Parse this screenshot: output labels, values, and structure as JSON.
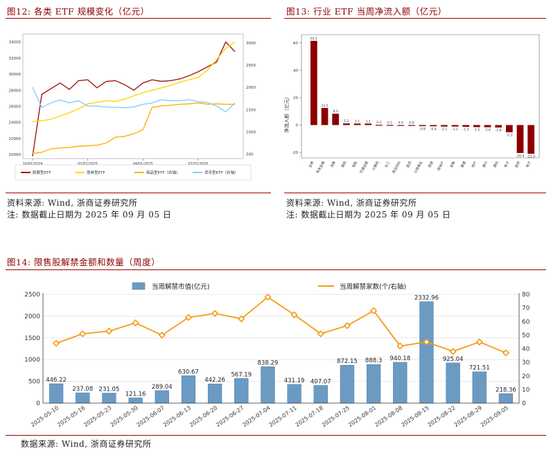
{
  "fig12": {
    "title": "图12:  各类 ETF 规模变化（亿元）",
    "source": "资料来源:  Wind,  浙商证券研究所",
    "note": "注:  数据截止日期为 2025 年 09 月 05 日"
  },
  "fig13": {
    "title": "图13:  行业 ETF 当周净流入额（亿元）",
    "source": "资料来源:  Wind,  浙商证券研究所",
    "note": "注:  数据截止日期为 2025 年 09 月 05 日"
  },
  "fig14": {
    "title": "图14:  限售股解禁金额和数量（周度）",
    "source": "数据来源:  Wind,  浙商证券研究所"
  },
  "chart_data": [
    {
      "id": "fig12",
      "type": "line",
      "x": [
        "2024-10-01",
        "2024-10-15",
        "2024-11-01",
        "2024-11-15",
        "2024-12-01",
        "2024-12-15",
        "2025-01-01",
        "2025-01-15",
        "2025-02-01",
        "2025-02-15",
        "2025-03-01",
        "2025-03-15",
        "2025-04-01",
        "2025-04-15",
        "2025-05-01",
        "2025-05-15",
        "2025-06-01",
        "2025-06-15",
        "2025-07-01",
        "2025-07-15",
        "2025-08-01",
        "2025-08-15",
        "2025-09-05"
      ],
      "xticks": [
        "10/01/2024",
        "01/01/2025",
        "04/01/2025",
        "07/01/2025"
      ],
      "yleft_ticks": [
        "20000",
        "22000",
        "24000",
        "26000",
        "28000",
        "30000",
        "32000",
        "34000"
      ],
      "yright_ticks": [
        "500",
        "1000",
        "1500",
        "2000",
        "2500",
        "3000"
      ],
      "ylim_left": [
        19500,
        35000
      ],
      "ylim_right": [
        400,
        3200
      ],
      "series": [
        {
          "name": "股票型ETF",
          "axis": "left",
          "color": "#a31515",
          "values": [
            19800,
            27500,
            28200,
            28900,
            28100,
            29200,
            29300,
            28300,
            29100,
            29200,
            28700,
            28000,
            28900,
            29300,
            29100,
            29200,
            29400,
            29800,
            30300,
            30900,
            31500,
            34000,
            32800
          ]
        },
        {
          "name": "债券型ETF",
          "axis": "left",
          "color": "#ffd600",
          "values": [
            24100,
            24200,
            24400,
            24800,
            25200,
            25700,
            26300,
            26500,
            26700,
            26600,
            26900,
            27300,
            27700,
            28000,
            28300,
            28600,
            29000,
            29300,
            29600,
            30500,
            31800,
            33200,
            34000
          ]
        },
        {
          "name": "商品型ETF（右轴）",
          "axis": "right",
          "color": "#ffb000",
          "values": [
            520,
            540,
            620,
            640,
            650,
            680,
            690,
            700,
            750,
            880,
            900,
            960,
            1050,
            1550,
            1580,
            1600,
            1620,
            1630,
            1650,
            1620,
            1630,
            1620,
            1620
          ]
        },
        {
          "name": "货币型ETF（右轴）",
          "axis": "right",
          "color": "#87cefa",
          "values": [
            2000,
            1550,
            1650,
            1720,
            1650,
            1700,
            1580,
            1580,
            1560,
            1550,
            1540,
            1560,
            1620,
            1650,
            1720,
            1700,
            1700,
            1720,
            1680,
            1660,
            1580,
            1450,
            1650
          ]
        }
      ]
    },
    {
      "id": "fig13",
      "type": "bar",
      "ylabel": "净流入额（亿元）",
      "ylim": [
        -24,
        66
      ],
      "yticks": [
        "-20",
        "0",
        "20",
        "40",
        "60"
      ],
      "categories": [
        "证券",
        "有色金属",
        "消费",
        "煤炭",
        "电影",
        "交通运输",
        "计算机",
        "化工",
        "食品饮料",
        "医药",
        "公用事业",
        "旅游",
        "房地产",
        "金融",
        "基建",
        "地产",
        "银行",
        "通信",
        "电子",
        "医药",
        "电子"
      ],
      "labels": [
        "61.5",
        "12.5",
        "8.3",
        "1.2",
        "1.1",
        "1.1",
        "0.2",
        "0.1",
        "0.0",
        "0.0",
        "-0.8",
        "-0.9",
        "-1.1",
        "-1.1",
        "-1.3",
        "-1.5",
        "-1.6",
        "-1.8",
        "-5.3",
        "-20.4",
        "-21.0"
      ],
      "values": [
        61.5,
        12.5,
        8.3,
        1.2,
        1.1,
        1.1,
        0.2,
        0.1,
        0.0,
        0.0,
        -0.8,
        -0.9,
        -1.1,
        -1.1,
        -1.3,
        -1.5,
        -1.6,
        -1.8,
        -5.3,
        -20.4,
        -21.0
      ]
    },
    {
      "id": "fig14",
      "type": "bar+line",
      "categories": [
        "2025-05-10",
        "2025-05-16",
        "2025-05-23",
        "2025-05-30",
        "2025-06-07",
        "2025-06-13",
        "2025-06-20",
        "2025-06-27",
        "2025-07-04",
        "2025-07-11",
        "2025-07-18",
        "2025-07-25",
        "2025-08-01",
        "2025-08-08",
        "2025-08-15",
        "2025-08-22",
        "2025-08-29",
        "2025-09-05"
      ],
      "series": [
        {
          "name": "当周解禁市值(亿元)",
          "type": "bar",
          "axis": "left",
          "color": "#6b9bc3",
          "values": [
            446.22,
            237.08,
            231.05,
            121.16,
            289.04,
            630.67,
            442.26,
            567.19,
            838.29,
            431.19,
            407.07,
            872.15,
            888.3,
            940.18,
            2332.96,
            925.04,
            721.51,
            218.36
          ],
          "labels": [
            "446.22",
            "237.08",
            "231.05",
            "121.16",
            "289.04",
            "630.67",
            "442.26",
            "567.19",
            "838.29",
            "431.19",
            "407.07",
            "872.15",
            "888.3",
            "940.18",
            "2332.96",
            "925.04",
            "721.51",
            "218.36"
          ]
        },
        {
          "name": "当周解禁家数(个/右轴)",
          "type": "line",
          "axis": "right",
          "color": "#f39c12",
          "values": [
            44,
            51,
            53,
            59,
            50,
            63,
            66,
            62,
            78,
            65,
            51,
            57,
            68,
            42,
            45,
            38,
            45,
            37
          ]
        }
      ],
      "yleft_ticks": [
        "0",
        "500",
        "1000",
        "1500",
        "2000",
        "2500"
      ],
      "yright_ticks": [
        "0",
        "10",
        "20",
        "30",
        "40",
        "50",
        "60",
        "70",
        "80"
      ],
      "ylim_left": [
        0,
        2500
      ],
      "ylim_right": [
        0,
        80
      ]
    }
  ]
}
